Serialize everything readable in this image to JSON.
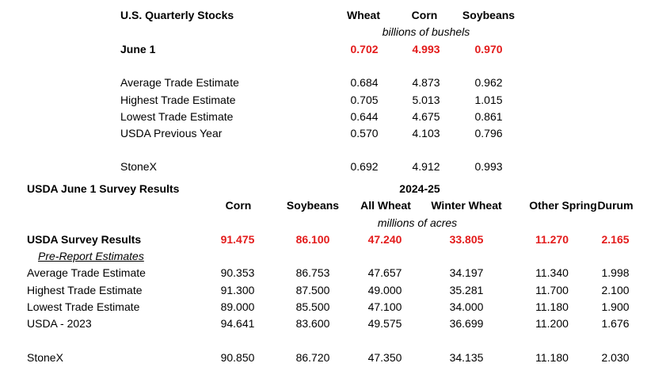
{
  "stocks": {
    "title": "U.S. Quarterly Stocks",
    "columns": [
      "Wheat",
      "Corn",
      "Soybeans"
    ],
    "units": "billions of bushels",
    "rows": [
      {
        "label": "June 1",
        "values": [
          "0.702",
          "4.993",
          "0.970"
        ]
      },
      {
        "label": "Average Trade Estimate",
        "values": [
          "0.684",
          "4.873",
          "0.962"
        ]
      },
      {
        "label": "Highest Trade Estimate",
        "values": [
          "0.705",
          "5.013",
          "1.015"
        ]
      },
      {
        "label": "Lowest Trade Estimate",
        "values": [
          "0.644",
          "4.675",
          "0.861"
        ]
      },
      {
        "label": "USDA Previous Year",
        "values": [
          "0.570",
          "4.103",
          "0.796"
        ]
      },
      {
        "label": "StoneX",
        "values": [
          "0.692",
          "4.912",
          "0.993"
        ]
      }
    ]
  },
  "survey": {
    "title": "USDA June 1 Survey Results",
    "year": "2024-25",
    "columns": [
      "Corn",
      "Soybeans",
      "All Wheat",
      "Winter Wheat",
      "Other Spring",
      "Durum"
    ],
    "units": "millions of acres",
    "subheading": "Pre-Report Estimates",
    "rows": [
      {
        "label": "USDA Survey Results",
        "values": [
          "91.475",
          "86.100",
          "47.240",
          "33.805",
          "11.270",
          "2.165"
        ]
      },
      {
        "label": "Average Trade Estimate",
        "values": [
          "90.353",
          "86.753",
          "47.657",
          "34.197",
          "11.340",
          "1.998"
        ]
      },
      {
        "label": "Highest Trade Estimate",
        "values": [
          "91.300",
          "87.500",
          "49.000",
          "35.281",
          "11.700",
          "2.100"
        ]
      },
      {
        "label": "Lowest Trade Estimate",
        "values": [
          "89.000",
          "85.500",
          "47.100",
          "34.000",
          "11.180",
          "1.900"
        ]
      },
      {
        "label": "USDA - 2023",
        "values": [
          "94.641",
          "83.600",
          "49.575",
          "36.699",
          "11.200",
          "1.676"
        ]
      },
      {
        "label": "StoneX",
        "values": [
          "90.850",
          "86.720",
          "47.350",
          "34.135",
          "11.180",
          "2.030"
        ]
      }
    ]
  }
}
